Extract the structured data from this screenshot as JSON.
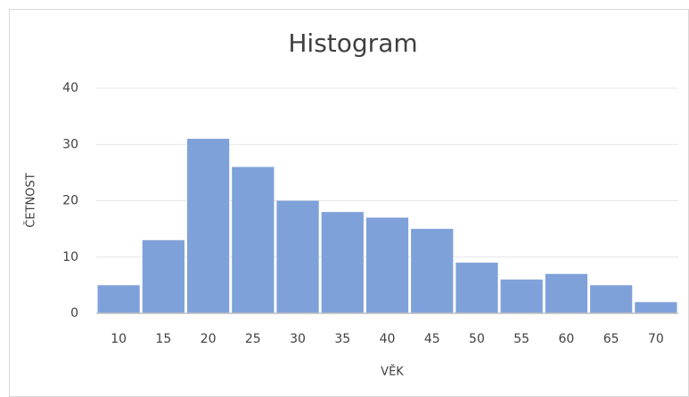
{
  "chart_data": {
    "type": "bar",
    "title": "Histogram",
    "x_label": "VĚK",
    "y_label": "ČETNOST",
    "categories": [
      "10",
      "15",
      "20",
      "25",
      "30",
      "35",
      "40",
      "45",
      "50",
      "55",
      "60",
      "65",
      "70"
    ],
    "values": [
      5,
      13,
      31,
      26,
      20,
      18,
      17,
      15,
      9,
      6,
      7,
      5,
      2
    ],
    "color": "#7fa1d9",
    "ylim": [
      0,
      40
    ],
    "yticks": [
      0,
      10,
      20,
      30,
      40
    ],
    "grid": true
  }
}
